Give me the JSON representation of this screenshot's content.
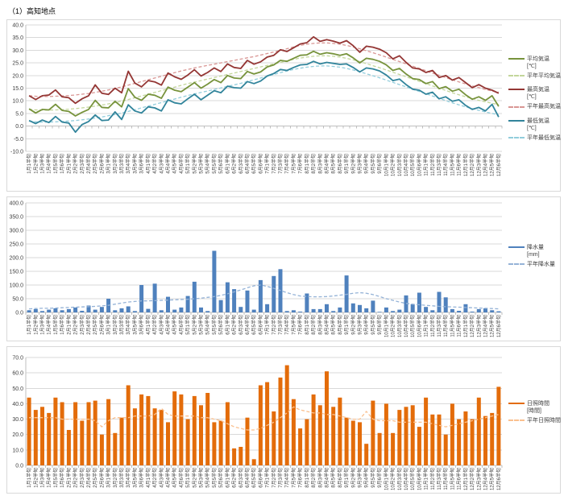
{
  "page_title": "（1）高知地点",
  "x_labels": [
    "1月1半旬",
    "1月2半旬",
    "1月3半旬",
    "1月4半旬",
    "1月5半旬",
    "1月6半旬",
    "2月1半旬",
    "2月2半旬",
    "2月3半旬",
    "2月4半旬",
    "2月5半旬",
    "2月6半旬",
    "3月1半旬",
    "3月2半旬",
    "3月3半旬",
    "3月4半旬",
    "3月5半旬",
    "3月6半旬",
    "4月1半旬",
    "4月2半旬",
    "4月3半旬",
    "4月4半旬",
    "4月5半旬",
    "4月6半旬",
    "5月1半旬",
    "5月2半旬",
    "5月3半旬",
    "5月4半旬",
    "5月5半旬",
    "5月6半旬",
    "6月1半旬",
    "6月2半旬",
    "6月3半旬",
    "6月4半旬",
    "6月5半旬",
    "6月6半旬",
    "7月1半旬",
    "7月2半旬",
    "7月3半旬",
    "7月4半旬",
    "7月5半旬",
    "7月6半旬",
    "8月1半旬",
    "8月2半旬",
    "8月3半旬",
    "8月4半旬",
    "8月5半旬",
    "8月6半旬",
    "9月1半旬",
    "9月2半旬",
    "9月3半旬",
    "9月4半旬",
    "9月5半旬",
    "9月6半旬",
    "10月1半旬",
    "10月2半旬",
    "10月3半旬",
    "10月4半旬",
    "10月5半旬",
    "10月6半旬",
    "11月1半旬",
    "11月2半旬",
    "11月3半旬",
    "11月4半旬",
    "11月5半旬",
    "11月6半旬",
    "12月1半旬",
    "12月2半旬",
    "12月3半旬",
    "12月4半旬",
    "12月5半旬",
    "12月6半旬"
  ],
  "chart_data": [
    {
      "type": "line",
      "name": "気温",
      "ylim": [
        -10,
        40
      ],
      "ytick": 5,
      "grid": true,
      "legend_position": "right",
      "series": [
        {
          "name": "平均気温",
          "unit": "[℃]",
          "color": "#77933C",
          "dash": false,
          "kind": "line",
          "values": [
            6.8,
            5.2,
            6.6,
            6.4,
            8.6,
            6.2,
            5.8,
            4.0,
            5.4,
            6.6,
            10.2,
            7.4,
            7.2,
            9.8,
            7.6,
            14.8,
            11.4,
            10.2,
            12.6,
            12.2,
            11.0,
            15.4,
            14.2,
            13.6,
            15.4,
            17.2,
            15.0,
            16.6,
            18.4,
            17.2,
            20.0,
            19.0,
            18.8,
            21.6,
            20.6,
            21.4,
            23.4,
            24.2,
            26.0,
            25.6,
            26.8,
            28.0,
            28.2,
            29.6,
            28.4,
            29.0,
            28.6,
            28.0,
            28.6,
            27.0,
            25.0,
            26.8,
            26.4,
            25.6,
            24.2,
            22.0,
            22.8,
            20.6,
            18.8,
            18.4,
            16.8,
            17.6,
            14.8,
            15.6,
            13.8,
            14.6,
            12.4,
            10.6,
            11.6,
            10.2,
            12.0,
            7.8
          ]
        },
        {
          "name": "平年平均気温",
          "unit": "",
          "color": "#C3D69B",
          "dash": true,
          "kind": "line",
          "values": [
            6.6,
            6.4,
            6.3,
            6.3,
            6.4,
            6.5,
            6.7,
            6.9,
            7.2,
            7.5,
            7.9,
            8.3,
            8.8,
            9.3,
            9.9,
            10.5,
            11.2,
            11.9,
            12.6,
            13.3,
            14.0,
            14.7,
            15.4,
            16.1,
            16.8,
            17.4,
            18.0,
            18.6,
            19.2,
            19.8,
            20.4,
            21.0,
            21.6,
            22.2,
            22.8,
            23.4,
            24.0,
            24.6,
            25.2,
            25.8,
            26.4,
            26.9,
            27.3,
            27.6,
            27.8,
            27.8,
            27.6,
            27.3,
            26.8,
            26.2,
            25.5,
            24.7,
            23.9,
            23.1,
            22.2,
            21.3,
            20.4,
            19.5,
            18.6,
            17.7,
            16.8,
            15.9,
            15.0,
            14.1,
            13.2,
            12.4,
            11.6,
            10.9,
            10.2,
            9.6,
            9.0,
            8.5
          ]
        },
        {
          "name": "最高気温",
          "unit": "[℃]",
          "color": "#943634",
          "dash": false,
          "kind": "line",
          "values": [
            12.0,
            10.5,
            12.0,
            12.3,
            14.3,
            11.6,
            11.2,
            9.0,
            10.8,
            12.0,
            16.3,
            13.0,
            12.5,
            15.0,
            13.2,
            21.7,
            17.0,
            15.5,
            18.0,
            17.5,
            16.2,
            21.0,
            19.5,
            18.5,
            20.2,
            22.3,
            19.8,
            21.2,
            23.0,
            21.6,
            24.6,
            23.2,
            22.8,
            26.0,
            24.5,
            25.4,
            27.3,
            28.0,
            30.2,
            29.5,
            31.0,
            32.5,
            33.0,
            35.3,
            33.5,
            34.2,
            33.6,
            32.8,
            33.8,
            31.8,
            29.2,
            31.6,
            31.2,
            30.4,
            29.0,
            26.6,
            27.8,
            25.2,
            23.0,
            22.6,
            21.2,
            22.0,
            19.2,
            20.0,
            18.2,
            19.2,
            17.2,
            15.2,
            16.4,
            15.0,
            14.2,
            13.0
          ]
        },
        {
          "name": "平年最高気温",
          "unit": "",
          "color": "#D99694",
          "dash": true,
          "kind": "line",
          "values": [
            12.0,
            11.8,
            11.7,
            11.7,
            11.8,
            11.9,
            12.1,
            12.3,
            12.6,
            12.9,
            13.3,
            13.8,
            14.3,
            14.9,
            15.5,
            16.2,
            16.9,
            17.6,
            18.3,
            19.0,
            19.7,
            20.4,
            21.1,
            21.8,
            22.4,
            23.0,
            23.5,
            24.0,
            24.5,
            25.0,
            25.5,
            26.0,
            26.5,
            27.0,
            27.5,
            28.1,
            28.7,
            29.3,
            29.9,
            30.6,
            31.3,
            31.9,
            32.4,
            32.7,
            32.9,
            32.9,
            32.7,
            32.4,
            31.9,
            31.3,
            30.6,
            29.8,
            29.0,
            28.2,
            27.3,
            26.4,
            25.5,
            24.6,
            23.7,
            22.8,
            21.9,
            21.0,
            20.1,
            19.2,
            18.3,
            17.5,
            16.7,
            15.9,
            15.2,
            14.5,
            13.9,
            13.4
          ]
        },
        {
          "name": "最低気温",
          "unit": "[℃]",
          "color": "#31849B",
          "dash": false,
          "kind": "line",
          "values": [
            2.2,
            1.0,
            2.4,
            1.4,
            3.8,
            1.6,
            1.2,
            -2.4,
            0.6,
            1.8,
            4.4,
            2.2,
            2.4,
            5.6,
            2.6,
            8.4,
            6.0,
            5.2,
            7.6,
            7.2,
            6.0,
            10.4,
            9.2,
            8.8,
            10.8,
            12.6,
            10.4,
            12.2,
            14.0,
            13.2,
            15.8,
            15.2,
            15.0,
            17.6,
            16.8,
            17.8,
            19.8,
            20.8,
            22.4,
            22.0,
            23.2,
            24.2,
            24.4,
            25.6,
            24.6,
            25.2,
            24.8,
            24.4,
            24.6,
            23.2,
            21.4,
            23.0,
            22.6,
            21.8,
            20.2,
            18.0,
            18.6,
            16.4,
            14.6,
            14.2,
            12.6,
            13.4,
            10.8,
            11.6,
            9.8,
            10.4,
            8.2,
            6.6,
            7.4,
            6.0,
            8.6,
            3.6
          ]
        },
        {
          "name": "平年最低気温",
          "unit": "",
          "color": "#92CDDC",
          "dash": true,
          "kind": "line",
          "values": [
            1.9,
            1.7,
            1.6,
            1.6,
            1.7,
            1.8,
            2.0,
            2.2,
            2.5,
            2.8,
            3.2,
            3.6,
            4.1,
            4.6,
            5.2,
            5.8,
            6.5,
            7.2,
            7.9,
            8.6,
            9.3,
            10.0,
            10.7,
            11.4,
            12.1,
            12.7,
            13.3,
            13.9,
            14.5,
            15.1,
            15.7,
            16.3,
            16.9,
            17.6,
            18.3,
            19.0,
            19.7,
            20.4,
            21.1,
            21.8,
            22.4,
            22.9,
            23.3,
            23.6,
            23.8,
            23.8,
            23.6,
            23.3,
            22.8,
            22.2,
            21.5,
            20.7,
            19.9,
            19.1,
            18.2,
            17.3,
            16.4,
            15.5,
            14.6,
            13.7,
            12.8,
            11.9,
            11.0,
            10.1,
            9.2,
            8.4,
            7.6,
            6.9,
            6.2,
            5.6,
            5.0,
            4.5
          ]
        }
      ]
    },
    {
      "type": "bar",
      "name": "降水量",
      "ylim": [
        0,
        400
      ],
      "ytick": 50,
      "grid": true,
      "legend_position": "right",
      "series": [
        {
          "name": "降水量",
          "unit": "[mm]",
          "color": "#4F81BD",
          "dash": false,
          "kind": "bar",
          "values": [
            8,
            12,
            5,
            10,
            15,
            8,
            12,
            18,
            6,
            25,
            10,
            20,
            50,
            8,
            15,
            22,
            5,
            100,
            13,
            105,
            8,
            57,
            10,
            18,
            60,
            112,
            18,
            5,
            225,
            45,
            110,
            85,
            20,
            80,
            10,
            118,
            30,
            133,
            158,
            5,
            8,
            3,
            69,
            12,
            12,
            30,
            5,
            18,
            135,
            33,
            27,
            15,
            43,
            2,
            18,
            5,
            10,
            62,
            30,
            72,
            20,
            8,
            75,
            55,
            12,
            6,
            30,
            3,
            12,
            15,
            8,
            4
          ]
        },
        {
          "name": "平年降水量",
          "unit": "",
          "color": "#95B3D7",
          "dash": true,
          "kind": "line",
          "values": [
            13,
            14,
            15,
            15,
            16,
            17,
            18,
            19,
            20,
            21,
            22,
            24,
            26,
            30,
            34,
            38,
            40,
            42,
            42,
            43,
            44,
            45,
            46,
            47,
            48,
            50,
            52,
            55,
            58,
            62,
            68,
            75,
            82,
            90,
            97,
            100,
            95,
            88,
            80,
            72,
            65,
            60,
            58,
            57,
            57,
            58,
            60,
            63,
            66,
            70,
            72,
            70,
            65,
            58,
            50,
            44,
            38,
            33,
            30,
            28,
            26,
            24,
            22,
            21,
            20,
            19,
            18,
            17,
            16,
            15,
            14,
            13
          ]
        }
      ]
    },
    {
      "type": "bar",
      "name": "日照時間",
      "ylim": [
        0,
        70
      ],
      "ytick": 10,
      "grid": true,
      "legend_position": "right",
      "series": [
        {
          "name": "日照時間",
          "unit": "[時間]",
          "color": "#E36C0A",
          "dash": false,
          "kind": "bar",
          "values": [
            44,
            36,
            38,
            34,
            44,
            41,
            23,
            41,
            29,
            41,
            42,
            20,
            43,
            21,
            31,
            52,
            37,
            46,
            45,
            37,
            36,
            28,
            48,
            46,
            30,
            45,
            39,
            47,
            28,
            29,
            41,
            11,
            12,
            31,
            4,
            52,
            54,
            35,
            57,
            65,
            43,
            24,
            30,
            46,
            39,
            61,
            38,
            44,
            31,
            29,
            28,
            14,
            42,
            21,
            40,
            21,
            36,
            38,
            39,
            25,
            44,
            33,
            33,
            20,
            40,
            30,
            35,
            30,
            44,
            32,
            34,
            51
          ]
        },
        {
          "name": "平年日照時間",
          "unit": "",
          "color": "#FAC08F",
          "dash": true,
          "kind": "line",
          "values": [
            31,
            31,
            31,
            31,
            31,
            30,
            30,
            30,
            30,
            30,
            29,
            25,
            29,
            31,
            31,
            31,
            32,
            32,
            32,
            33,
            37,
            33,
            32,
            32,
            32,
            32,
            31,
            31,
            30,
            29,
            27,
            25,
            24,
            23,
            23,
            24,
            26,
            28,
            31,
            34,
            38,
            36,
            35,
            34,
            34,
            33,
            33,
            32,
            31,
            30,
            30,
            35,
            30,
            29,
            29,
            29,
            28,
            28,
            28,
            28,
            28,
            27,
            26,
            25,
            26,
            27,
            28,
            29,
            30,
            31,
            32,
            33
          ]
        }
      ]
    }
  ]
}
